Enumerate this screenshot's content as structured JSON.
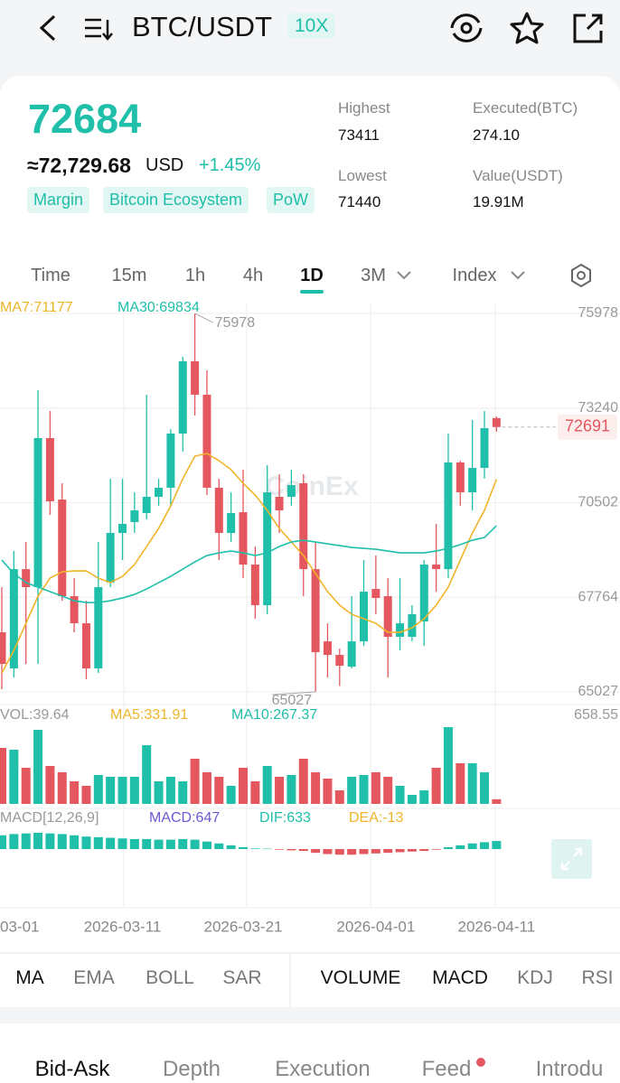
{
  "header": {
    "pair": "BTC/USDT",
    "leverage": "10X"
  },
  "ticker": {
    "price": "72684",
    "usd_price": "≈72,729.68",
    "usd_unit": "USD",
    "change": "+1.45%",
    "tags": [
      "Margin",
      "Bitcoin Ecosystem",
      "PoW"
    ],
    "stats": [
      {
        "label": "Highest",
        "value": "73411"
      },
      {
        "label": "Executed(BTC)",
        "value": "274.10"
      },
      {
        "label": "Lowest",
        "value": "71440"
      },
      {
        "label": "Value(USDT)",
        "value": "19.91M"
      }
    ]
  },
  "timeframes": [
    "Time",
    "15m",
    "1h",
    "4h",
    "1D",
    "3M",
    "Index"
  ],
  "chart": {
    "type": "candlestick",
    "watermark": "CoinEx",
    "up_color": "#1fbfaa",
    "down_color": "#e4575f",
    "ma_labels": [
      {
        "text": "MA7:71177",
        "color": "#f0b429"
      },
      {
        "text": "MA30:69834",
        "color": "#1fbfaa"
      }
    ],
    "ylim": [
      64661,
      76292
    ],
    "yticks": [
      75978,
      73240,
      70502,
      67764,
      65027
    ],
    "high_label": 75978,
    "low_label": 65027,
    "last_price": 72691,
    "categories": [
      "03-01",
      null,
      null,
      null,
      null,
      null,
      null,
      null,
      null,
      null,
      "2026-03-11",
      null,
      null,
      null,
      null,
      null,
      null,
      null,
      null,
      null,
      "2026-03-21",
      null,
      null,
      null,
      null,
      null,
      null,
      null,
      null,
      null,
      null,
      "2026-04-01",
      null,
      null,
      null,
      null,
      null,
      null,
      null,
      null,
      null,
      "2026-04-11"
    ],
    "open": [
      66751,
      65705,
      68580,
      68058,
      72371,
      70593,
      67796,
      67012,
      65705,
      68188,
      69626,
      69940,
      70201,
      70672,
      70933,
      72501,
      74593,
      73625,
      70933,
      69626,
      70227,
      68711,
      67535,
      70672,
      70672,
      71064,
      68580,
      66489,
      66097,
      65757,
      66489,
      68005,
      67796,
      66620,
      66620,
      67064,
      68711,
      68580,
      71665,
      70802,
      71508,
      72950
    ],
    "high": [
      68058,
      69103,
      69365,
      73756,
      73155,
      71064,
      68319,
      67665,
      69365,
      71194,
      71194,
      70802,
      73625,
      71194,
      72632,
      74723,
      75978,
      74331,
      71194,
      70802,
      71456,
      69234,
      71586,
      71325,
      71456,
      71325,
      69365,
      67012,
      66280,
      67796,
      68842,
      68972,
      68319,
      68319,
      67535,
      68842,
      69887,
      72501,
      71717,
      72893,
      73155,
      73000
    ],
    "low": [
      65100,
      65444,
      65836,
      65836,
      70149,
      67665,
      66751,
      65391,
      65574,
      68058,
      68842,
      69626,
      70018,
      70410,
      70410,
      71979,
      73024,
      70724,
      68842,
      69365,
      68319,
      67143,
      67273,
      69626,
      70410,
      67796,
      65027,
      65444,
      65200,
      65705,
      66358,
      67273,
      65444,
      66228,
      66489,
      66358,
      67927,
      68319,
      70410,
      70279,
      71194,
      72560
    ],
    "close": [
      65836,
      68580,
      68058,
      72371,
      70541,
      67796,
      67012,
      65705,
      68058,
      69626,
      69887,
      70279,
      70672,
      70933,
      72501,
      74593,
      73625,
      70933,
      69626,
      70201,
      68711,
      67535,
      70802,
      70279,
      71011,
      68580,
      66175,
      66097,
      65783,
      66489,
      67927,
      67744,
      66620,
      67012,
      67273,
      68711,
      68580,
      71665,
      70802,
      71508,
      72658,
      72691
    ],
    "ma7": [
      65574,
      66228,
      67012,
      67796,
      68319,
      68502,
      68528,
      68528,
      68319,
      68188,
      68371,
      68711,
      69234,
      69757,
      70410,
      71194,
      71848,
      71926,
      71717,
      71456,
      71064,
      70724,
      70279,
      69757,
      69365,
      68972,
      68450,
      67927,
      67535,
      67273,
      67143,
      67012,
      66751,
      66751,
      66881,
      67143,
      67535,
      68058,
      68842,
      69626,
      70279,
      71177
    ],
    "ma30": [
      68842,
      68450,
      68188,
      68058,
      67927,
      67796,
      67665,
      67613,
      67613,
      67665,
      67744,
      67848,
      68005,
      68188,
      68371,
      68580,
      68789,
      68972,
      69051,
      69103,
      69051,
      68972,
      69051,
      69234,
      69365,
      69417,
      69365,
      69312,
      69260,
      69208,
      69182,
      69155,
      69103,
      69051,
      69051,
      69051,
      69103,
      69182,
      69286,
      69417,
      69495,
      69834
    ],
    "vol_labels": [
      {
        "text": "VOL:39.64",
        "color": "#999999"
      },
      {
        "text": "MA5:331.91",
        "color": "#f0b429"
      },
      {
        "text": "MA10:267.37",
        "color": "#1fbfaa"
      }
    ],
    "vol_max": 658.55,
    "volume": [
      480.5,
      465,
      310,
      635.5,
      325.5,
      271.3,
      193.8,
      155,
      248,
      232.5,
      232.5,
      232.5,
      503.8,
      193.8,
      232.5,
      193.8,
      387.5,
      271.3,
      232.5,
      155,
      310,
      193.8,
      325.5,
      232.5,
      248,
      387.5,
      271.3,
      217,
      116.3,
      232.5,
      248,
      271.3,
      232.5,
      155,
      77.5,
      116.3,
      310,
      658.55,
      348.8,
      348.8,
      271.3,
      39.64
    ],
    "macd_labels": [
      {
        "text": "MACD[12,26,9]",
        "color": "#999999"
      },
      {
        "text": "MACD:647",
        "color": "#6b5bd2"
      },
      {
        "text": "DIF:633",
        "color": "#1fbfaa"
      },
      {
        "text": "DEA:-13",
        "color": "#f0b429"
      }
    ],
    "macd": [
      1100,
      1200,
      1250,
      1300,
      1250,
      1200,
      1100,
      1000,
      950,
      900,
      850,
      800,
      800,
      750,
      750,
      800,
      750,
      600,
      450,
      300,
      150,
      50,
      30,
      -50,
      -100,
      -150,
      -300,
      -400,
      -450,
      -450,
      -400,
      -350,
      -300,
      -250,
      -200,
      -150,
      -50,
      150,
      300,
      450,
      550,
      647
    ]
  },
  "indicators": {
    "main": [
      "MA",
      "EMA",
      "BOLL",
      "SAR"
    ],
    "sub": [
      "VOLUME",
      "MACD",
      "KDJ",
      "RSI"
    ]
  },
  "bottom_tabs": [
    "Bid-Ask",
    "Depth",
    "Execution",
    "Feed",
    "Introdu"
  ]
}
